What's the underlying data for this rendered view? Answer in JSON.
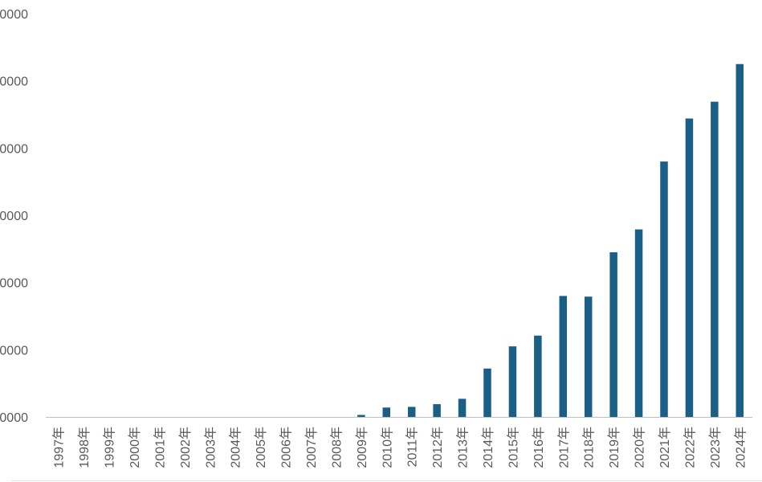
{
  "chart_data": {
    "type": "bar",
    "categories": [
      "1997年",
      "1998年",
      "1999年",
      "2000年",
      "2001年",
      "2002年",
      "2003年",
      "2004年",
      "2005年",
      "2006年",
      "2007年",
      "2008年",
      "2009年",
      "2010年",
      "2011年",
      "2012年",
      "2013年",
      "2014年",
      "2015年",
      "2016年",
      "2017年",
      "2018年",
      "2019年",
      "2020年",
      "2021年",
      "2022年",
      "2023年",
      "2024年"
    ],
    "values": [
      0,
      0,
      0,
      0,
      0,
      0,
      0,
      0,
      0,
      0,
      0,
      0,
      300,
      1400,
      1500,
      1900,
      2700,
      7200,
      10500,
      12100,
      18000,
      17900,
      24500,
      27900,
      38000,
      44400,
      46900,
      52500
    ],
    "y_tick_labels": [
      "0000",
      "0000",
      "0000",
      "0000",
      "0000",
      "0000",
      "0000"
    ],
    "ylim": [
      0,
      60000
    ],
    "bar_color": "#1a5f85",
    "axis_color": "#bfbfbf",
    "title": "",
    "xlabel": "",
    "ylabel": "",
    "grid": false,
    "legend": "none"
  }
}
